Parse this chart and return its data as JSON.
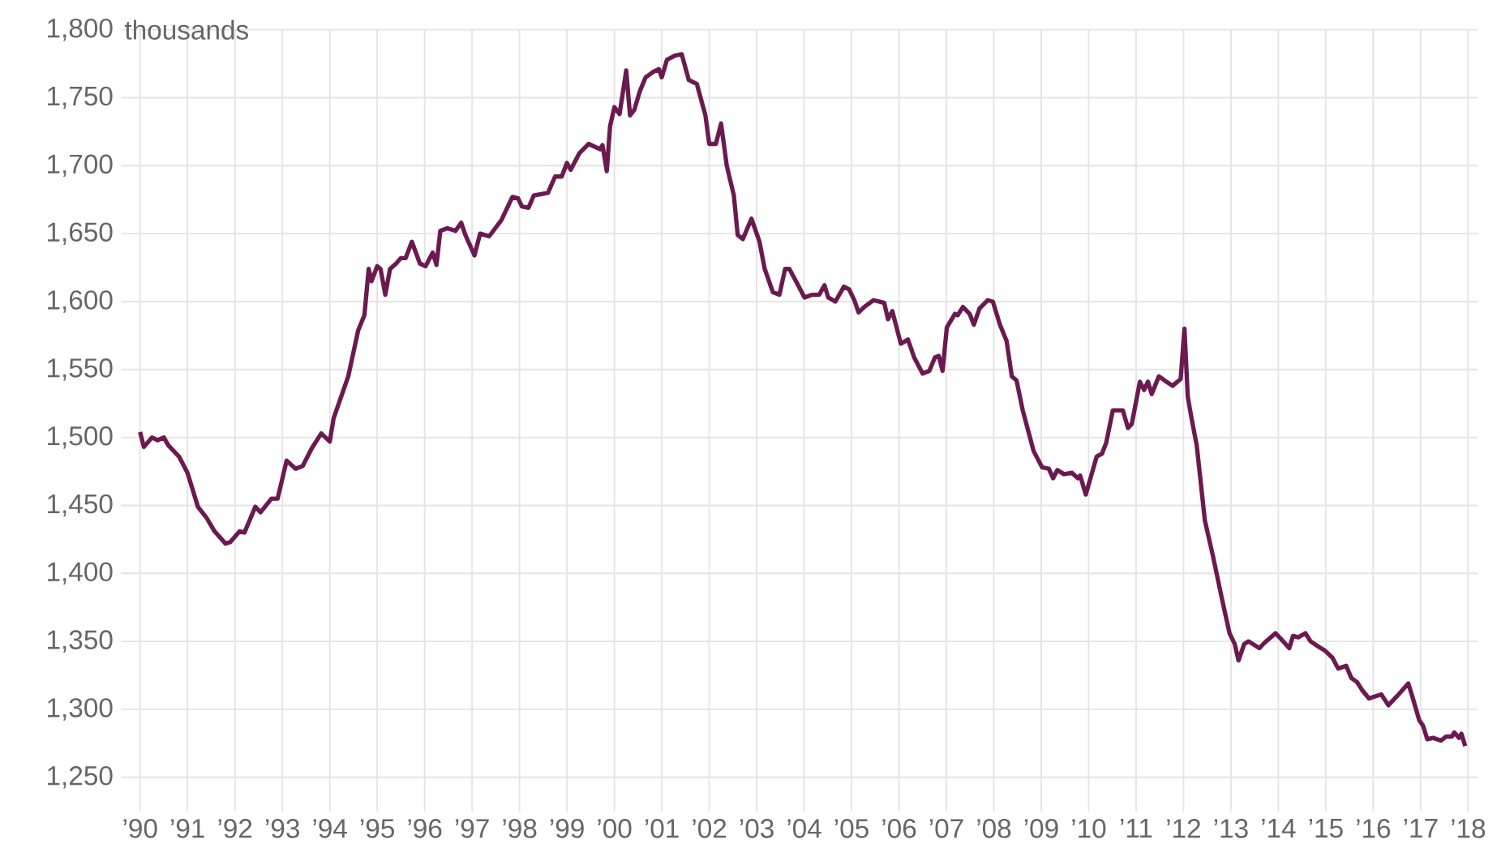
{
  "chart_data": {
    "type": "line",
    "ylabel": "thousands",
    "color": "#6b1a4f",
    "grid": true,
    "marker": "none",
    "line_style": "solid",
    "xlim": [
      1989.6,
      2018.2
    ],
    "ylim": [
      1225,
      1800
    ],
    "xticks": [
      {
        "value": 1990,
        "label": "’90"
      },
      {
        "value": 1991,
        "label": "’91"
      },
      {
        "value": 1992,
        "label": "’92"
      },
      {
        "value": 1993,
        "label": "’93"
      },
      {
        "value": 1994,
        "label": "’94"
      },
      {
        "value": 1995,
        "label": "’95"
      },
      {
        "value": 1996,
        "label": "’96"
      },
      {
        "value": 1997,
        "label": "’97"
      },
      {
        "value": 1998,
        "label": "’98"
      },
      {
        "value": 1999,
        "label": "’99"
      },
      {
        "value": 2000,
        "label": "’00"
      },
      {
        "value": 2001,
        "label": "’01"
      },
      {
        "value": 2002,
        "label": "’02"
      },
      {
        "value": 2003,
        "label": "’03"
      },
      {
        "value": 2004,
        "label": "’04"
      },
      {
        "value": 2005,
        "label": "’05"
      },
      {
        "value": 2006,
        "label": "’06"
      },
      {
        "value": 2007,
        "label": "’07"
      },
      {
        "value": 2008,
        "label": "’08"
      },
      {
        "value": 2009,
        "label": "’09"
      },
      {
        "value": 2010,
        "label": "’10"
      },
      {
        "value": 2011,
        "label": "’11"
      },
      {
        "value": 2012,
        "label": "’12"
      },
      {
        "value": 2013,
        "label": "’13"
      },
      {
        "value": 2014,
        "label": "’14"
      },
      {
        "value": 2015,
        "label": "’15"
      },
      {
        "value": 2016,
        "label": "’16"
      },
      {
        "value": 2017,
        "label": "’17"
      },
      {
        "value": 2018,
        "label": "’18"
      }
    ],
    "yticks": [
      {
        "value": 1250,
        "label": "1,250"
      },
      {
        "value": 1300,
        "label": "1,300"
      },
      {
        "value": 1350,
        "label": "1,350"
      },
      {
        "value": 1400,
        "label": "1,400"
      },
      {
        "value": 1450,
        "label": "1,450"
      },
      {
        "value": 1500,
        "label": "1,500"
      },
      {
        "value": 1550,
        "label": "1,550"
      },
      {
        "value": 1600,
        "label": "1,600"
      },
      {
        "value": 1650,
        "label": "1,650"
      },
      {
        "value": 1700,
        "label": "1,700"
      },
      {
        "value": 1750,
        "label": "1,750"
      },
      {
        "value": 1800,
        "label": "1,800"
      }
    ],
    "x": [
      1990.0,
      1990.08,
      1990.25,
      1990.37,
      1990.5,
      1990.6,
      1990.82,
      1991.0,
      1991.22,
      1991.4,
      1991.57,
      1991.8,
      1991.9,
      1992.1,
      1992.2,
      1992.43,
      1992.54,
      1992.77,
      1992.9,
      1993.09,
      1993.28,
      1993.43,
      1993.62,
      1993.82,
      1994.0,
      1994.08,
      1994.39,
      1994.6,
      1994.73,
      1994.82,
      1994.88,
      1995.0,
      1995.07,
      1995.17,
      1995.27,
      1995.4,
      1995.5,
      1995.6,
      1995.73,
      1995.9,
      1996.02,
      1996.17,
      1996.25,
      1996.33,
      1996.48,
      1996.65,
      1996.77,
      1996.86,
      1997.05,
      1997.17,
      1997.36,
      1997.62,
      1997.85,
      1997.97,
      1998.05,
      1998.19,
      1998.3,
      1998.6,
      1998.75,
      1998.89,
      1999.0,
      1999.08,
      1999.26,
      1999.46,
      1999.7,
      1999.75,
      1999.84,
      1999.91,
      2000.0,
      2000.11,
      2000.25,
      2000.33,
      2000.42,
      2000.54,
      2000.66,
      2000.82,
      2000.94,
      2001.0,
      2001.11,
      2001.28,
      2001.42,
      2001.57,
      2001.74,
      2001.92,
      2002.0,
      2002.14,
      2002.25,
      2002.37,
      2002.52,
      2002.6,
      2002.71,
      2002.89,
      2003.06,
      2003.17,
      2003.34,
      2003.48,
      2003.6,
      2003.69,
      2003.86,
      2004.01,
      2004.17,
      2004.32,
      2004.43,
      2004.51,
      2004.66,
      2004.84,
      2004.95,
      2005.06,
      2005.15,
      2005.27,
      2005.46,
      2005.58,
      2005.69,
      2005.77,
      2005.86,
      2006.04,
      2006.19,
      2006.32,
      2006.5,
      2006.64,
      2006.76,
      2006.84,
      2006.92,
      2007.01,
      2007.18,
      2007.24,
      2007.35,
      2007.49,
      2007.58,
      2007.7,
      2007.87,
      2007.98,
      2008.13,
      2008.27,
      2008.38,
      2008.48,
      2008.61,
      2008.84,
      2009.02,
      2009.16,
      2009.25,
      2009.34,
      2009.48,
      2009.65,
      2009.77,
      2009.82,
      2009.94,
      2010.17,
      2010.28,
      2010.37,
      2010.51,
      2010.72,
      2010.83,
      2010.91,
      2011.08,
      2011.17,
      2011.25,
      2011.33,
      2011.48,
      2011.6,
      2011.77,
      2011.94,
      2012.02,
      2012.09,
      2012.17,
      2012.28,
      2012.45,
      2012.62,
      2012.8,
      2012.97,
      2013.08,
      2013.16,
      2013.28,
      2013.37,
      2013.6,
      2013.71,
      2013.94,
      2014.05,
      2014.23,
      2014.31,
      2014.42,
      2014.57,
      2014.68,
      2014.85,
      2014.99,
      2015.14,
      2015.26,
      2015.43,
      2015.54,
      2015.66,
      2015.77,
      2015.91,
      2016.17,
      2016.32,
      2016.51,
      2016.74,
      2016.82,
      2016.97,
      2017.05,
      2017.14,
      2017.26,
      2017.43,
      2017.54,
      2017.66,
      2017.71,
      2017.81,
      2017.86,
      2017.94
    ],
    "values": [
      1504,
      1493,
      1500,
      1498,
      1500,
      1494,
      1486,
      1474,
      1449,
      1441,
      1431,
      1422,
      1423,
      1431,
      1430,
      1449,
      1445,
      1455,
      1455,
      1483,
      1477,
      1479,
      1492,
      1503,
      1497,
      1514,
      1545,
      1579,
      1590,
      1624,
      1615,
      1626,
      1624,
      1605,
      1624,
      1628,
      1632,
      1632,
      1644,
      1628,
      1626,
      1636,
      1627,
      1652,
      1654,
      1652,
      1658,
      1649,
      1634,
      1650,
      1648,
      1660,
      1677,
      1676,
      1670,
      1669,
      1678,
      1680,
      1692,
      1692,
      1702,
      1697,
      1709,
      1716,
      1712,
      1715,
      1696,
      1729,
      1743,
      1738,
      1770,
      1737,
      1741,
      1755,
      1765,
      1769,
      1771,
      1765,
      1778,
      1781,
      1782,
      1763,
      1760,
      1737,
      1716,
      1716,
      1731,
      1700,
      1678,
      1649,
      1646,
      1661,
      1644,
      1624,
      1607,
      1605,
      1624,
      1624,
      1613,
      1603,
      1605,
      1605,
      1612,
      1603,
      1600,
      1611,
      1609,
      1601,
      1592,
      1596,
      1601,
      1600,
      1599,
      1587,
      1593,
      1569,
      1572,
      1559,
      1547,
      1549,
      1559,
      1560,
      1549,
      1581,
      1591,
      1590,
      1596,
      1591,
      1583,
      1595,
      1601,
      1600,
      1583,
      1571,
      1545,
      1542,
      1520,
      1490,
      1478,
      1477,
      1470,
      1476,
      1473,
      1474,
      1470,
      1472,
      1458,
      1486,
      1488,
      1496,
      1520,
      1520,
      1507,
      1510,
      1541,
      1535,
      1541,
      1532,
      1545,
      1542,
      1538,
      1543,
      1580,
      1530,
      1514,
      1494,
      1439,
      1413,
      1383,
      1356,
      1348,
      1336,
      1348,
      1350,
      1345,
      1349,
      1356,
      1352,
      1345,
      1354,
      1353,
      1356,
      1350,
      1346,
      1343,
      1338,
      1330,
      1332,
      1323,
      1320,
      1314,
      1308,
      1311,
      1303,
      1310,
      1319,
      1310,
      1292,
      1288,
      1278,
      1279,
      1277,
      1280,
      1280,
      1283,
      1279,
      1282,
      1273
    ]
  }
}
